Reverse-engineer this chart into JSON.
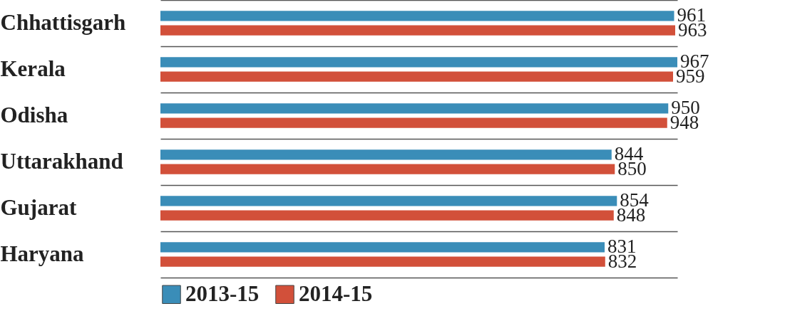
{
  "chart_data": {
    "type": "bar",
    "orientation": "horizontal",
    "data_labels": true,
    "grid": "y",
    "legend": "bottom",
    "categories": [
      "Chhattisgarh",
      "Kerala",
      "Odisha",
      "Uttarakhand",
      "Gujarat",
      "Haryana"
    ],
    "series": [
      {
        "name": "2013-15",
        "color": "#3a8db8",
        "values": [
          961,
          967,
          950,
          844,
          854,
          831
        ]
      },
      {
        "name": "2014-15",
        "color": "#d2503a",
        "values": [
          963,
          959,
          948,
          850,
          848,
          832
        ]
      }
    ]
  }
}
